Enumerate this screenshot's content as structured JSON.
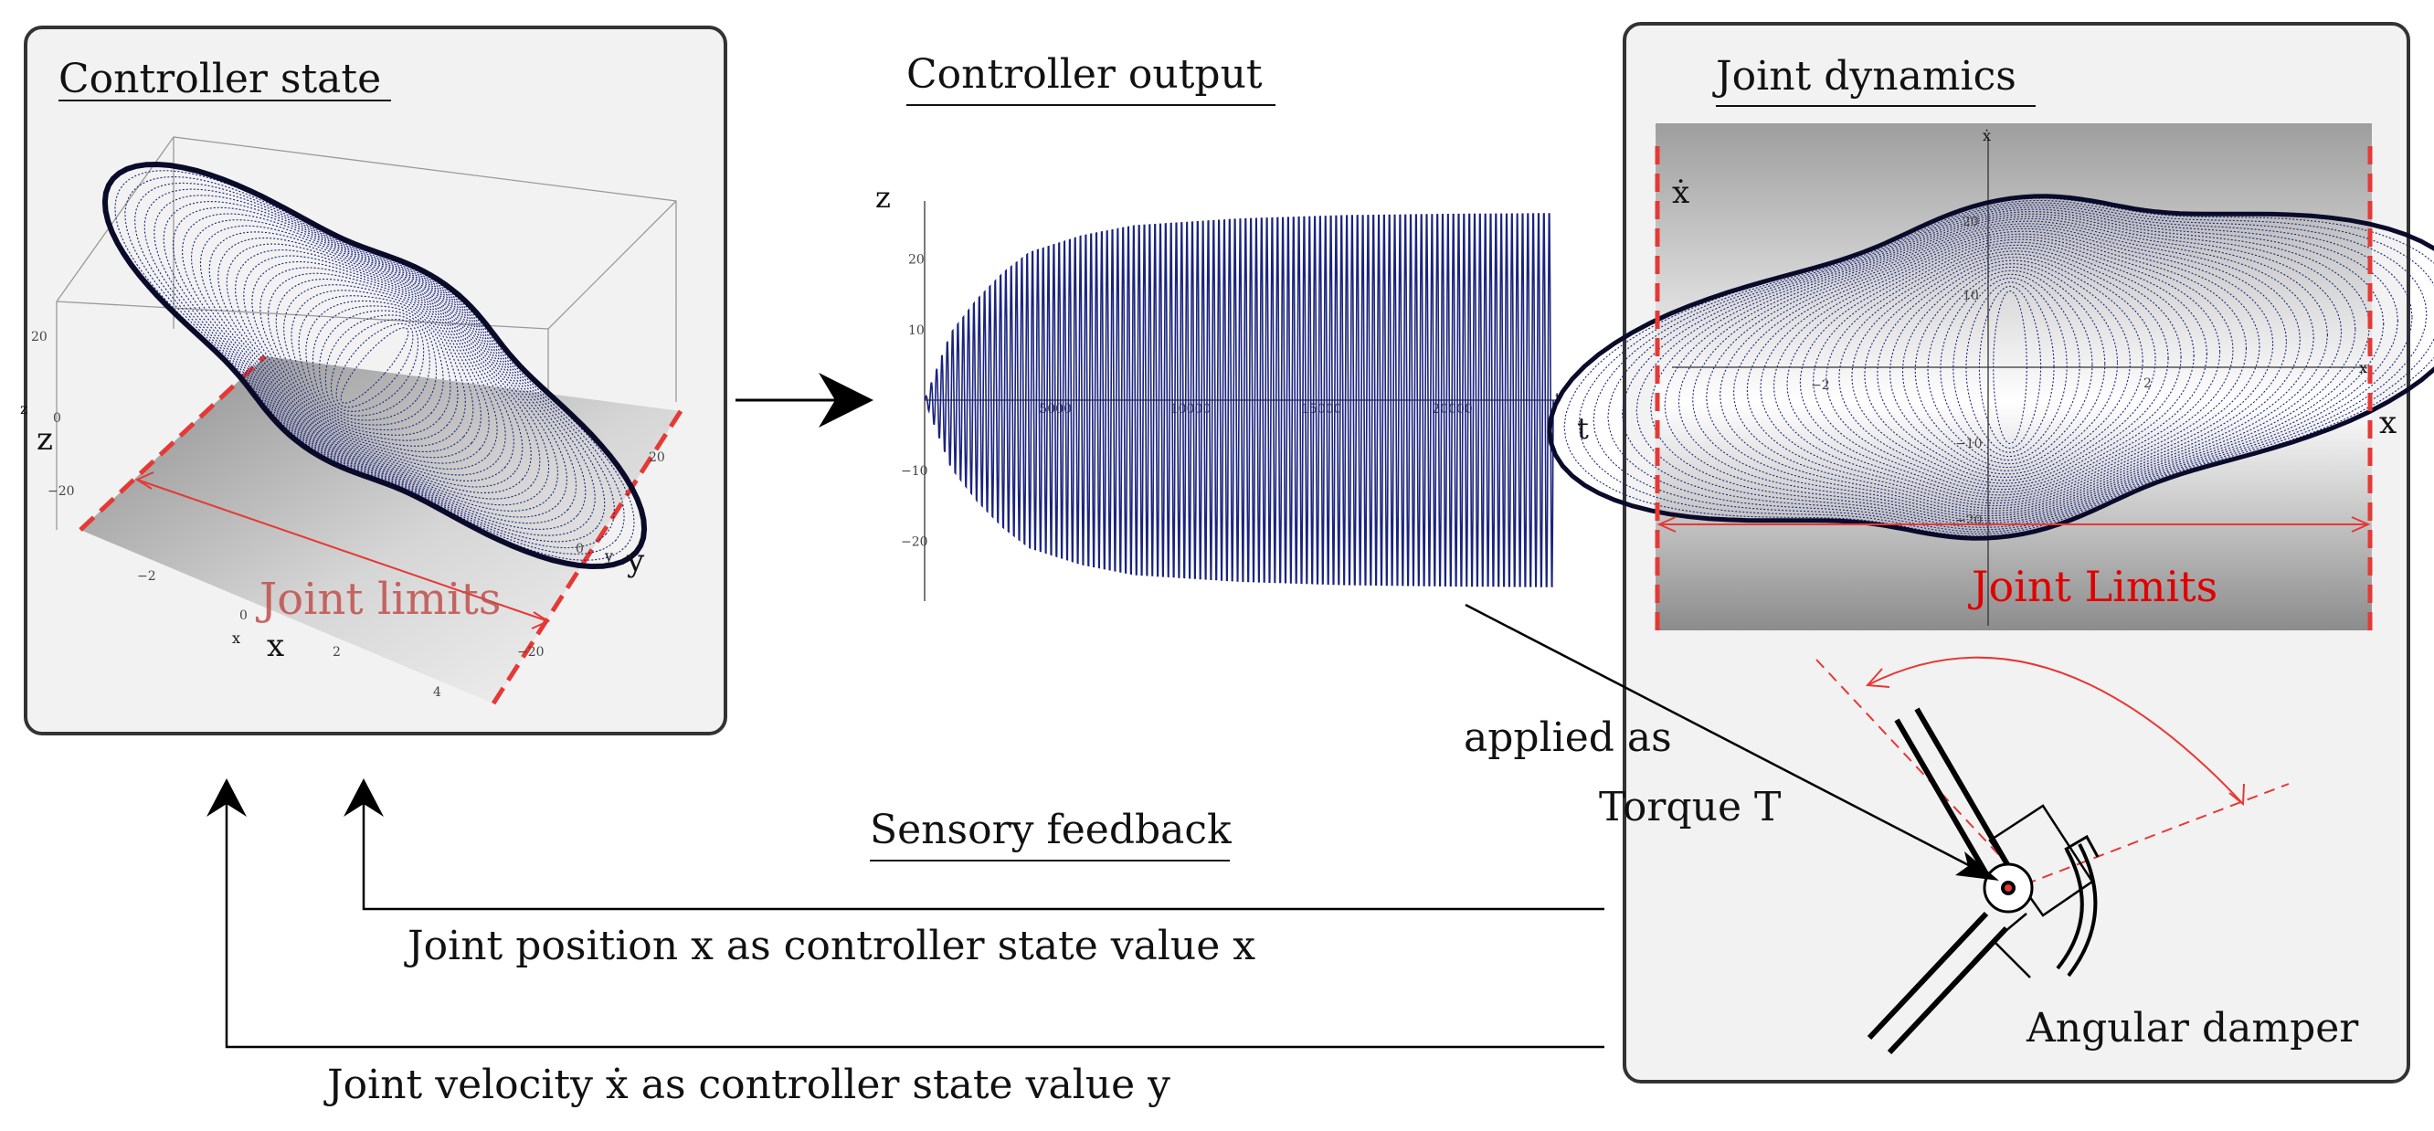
{
  "colors": {
    "panel_fill": "#f2f2f2",
    "panel_border": "#333333",
    "trajectory": "#1a237e",
    "limit_red": "#e53935",
    "joint_limit_text_left": "#c0504d",
    "joint_limit_text_right": "#e00000"
  },
  "icons": [
    "arrow-right-icon",
    "arrow-up-icon",
    "angular-damper-icon",
    "joint-link-icon"
  ],
  "controller_state": {
    "title": "Controller state",
    "axis_labels": {
      "x_small": "x",
      "x": "x",
      "y_small": "y",
      "y": "y",
      "z_small": "z",
      "z": "z"
    },
    "x_ticks": [
      "−2",
      "0",
      "2",
      "4"
    ],
    "y_ticks": [
      "0",
      "20",
      "−20"
    ],
    "z_ticks": [
      "20",
      "0",
      "−20"
    ],
    "joint_limits_label": "Joint limits"
  },
  "controller_output": {
    "title": "Controller output",
    "y_axis_label": "z",
    "t_small": "t",
    "t_label": "t",
    "y_ticks": [
      "20",
      "10",
      "−10",
      "−20"
    ],
    "x_ticks": [
      "5000",
      "10000",
      "15000",
      "20000"
    ],
    "chart_data": {
      "type": "line",
      "xlabel": "t",
      "ylabel": "z",
      "xlim": [
        0,
        24000
      ],
      "ylim": [
        -28,
        28
      ],
      "series": [
        {
          "envelope_t": [
            0,
            1000,
            2000,
            3000,
            4000,
            6000,
            8000,
            12000,
            16000,
            20000,
            24000
          ],
          "envelope_amp": [
            0,
            10,
            15,
            19,
            22,
            24.5,
            26,
            27,
            27.5,
            27.7,
            27.8
          ]
        }
      ]
    }
  },
  "joint_dynamics": {
    "title": "Joint dynamics",
    "xdot_top": "ẋ",
    "xdot_label": "ẋ",
    "x_small": "x",
    "x_label": "x",
    "x_ticks": [
      "−2",
      "2"
    ],
    "y_ticks": [
      "20",
      "10",
      "−10",
      "−20"
    ],
    "joint_limits_label": "Joint Limits",
    "angular_damper_label": "Angular damper"
  },
  "torque": {
    "line1": "applied as",
    "line2": "Torque T"
  },
  "feedback": {
    "title": "Sensory feedback",
    "position_text": "Joint position x as controller state value x",
    "velocity_text": "Joint velocity ẋ as controller state value y"
  }
}
